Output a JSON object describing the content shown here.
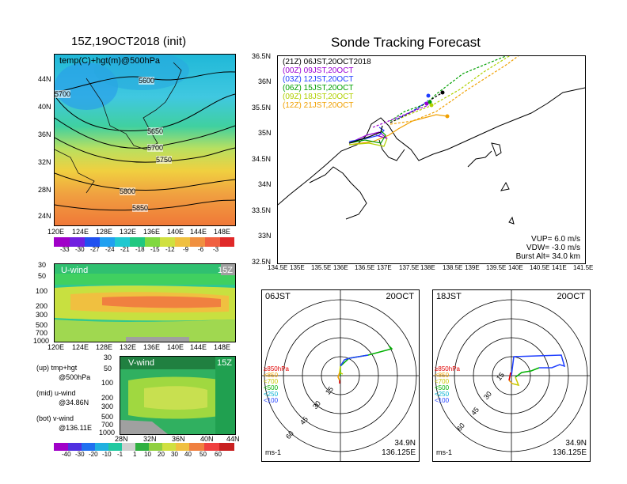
{
  "left_title": "15Z,19OCT2018 (init)",
  "right_title": "Sonde Tracking Forecast",
  "map500": {
    "label": "temp(C)+hgt(m)@500hPa",
    "lat_ticks": [
      "44N",
      "40N",
      "36N",
      "32N",
      "28N",
      "24N"
    ],
    "lon_ticks": [
      "120E",
      "124E",
      "128E",
      "132E",
      "136E",
      "140E",
      "144E",
      "148E"
    ],
    "contours": [
      "5600",
      "5700",
      "5650",
      "5700",
      "5750",
      "5800",
      "5850"
    ],
    "colorbar": [
      "-33",
      "-30",
      "-27",
      "-24",
      "-21",
      "-18",
      "-15",
      "-12",
      "-9",
      "-6",
      "-3"
    ]
  },
  "uwind": {
    "label": "U-wind",
    "time": "15Z",
    "p_ticks": [
      "30",
      "50",
      "100",
      "200",
      "300",
      "500",
      "700",
      "1000"
    ],
    "lon_ticks": [
      "120E",
      "124E",
      "128E",
      "132E",
      "136E",
      "140E",
      "144E",
      "148E"
    ]
  },
  "vwind": {
    "label": "V-wind",
    "time": "15Z",
    "p_ticks": [
      "30",
      "50",
      "100",
      "200",
      "300",
      "500",
      "700",
      "1000"
    ],
    "lat_ticks": [
      "28N",
      "32N",
      "36N",
      "40N",
      "44N"
    ],
    "colorbar": [
      "-40",
      "-30",
      "-20",
      "-10",
      "-1",
      "1",
      "10",
      "20",
      "30",
      "40",
      "50",
      "60"
    ]
  },
  "legend_notes": [
    {
      "a": "(up) tmp+hgt",
      "b": "@500hPa"
    },
    {
      "a": "(mid) u-wind",
      "b": "@34.86N"
    },
    {
      "a": "(bot) v-wind",
      "b": "@136.11E"
    }
  ],
  "track": {
    "launches": [
      {
        "label": "(21Z)  06JST,20OCT2018",
        "color": "#000000"
      },
      {
        "label": "(00Z)  09JST,20OCT",
        "color": "#9b00d4"
      },
      {
        "label": "(03Z)  12JST,20OCT",
        "color": "#1e3cff"
      },
      {
        "label": "(06Z)  15JST,20OCT",
        "color": "#00a000"
      },
      {
        "label": "(09Z)  18JST,20OCT",
        "color": "#b0d000"
      },
      {
        "label": "(12Z)  21JST,20OCT",
        "color": "#f0a000"
      }
    ],
    "lat_ticks": [
      "36.5N",
      "36N",
      "35.5N",
      "35N",
      "34.5N",
      "34N",
      "33.5N",
      "33N",
      "32.5N"
    ],
    "lon_ticks": [
      "134.5E",
      "135E",
      "135.5E",
      "136E",
      "136.5E",
      "137E",
      "137.5E",
      "138E",
      "138.5E",
      "139E",
      "139.5E",
      "140E",
      "140.5E",
      "141E",
      "141.5E"
    ],
    "params": [
      "VUP=  6.0  m/s",
      "VDW=  -3.0  m/s",
      "Burst Alt=  34.0  km"
    ]
  },
  "hodo1": {
    "time": "06JST",
    "date": "20OCT",
    "lat": "34.9N",
    "lon": "136.125E",
    "unit": "ms-1",
    "ring_labels": [
      "15",
      "30",
      "45",
      "60"
    ],
    "levels": [
      {
        "label": "≥850hPa",
        "color": "#e00000"
      },
      {
        "label": "<850",
        "color": "#f0a000"
      },
      {
        "label": "<700",
        "color": "#c8c800"
      },
      {
        "label": "<500",
        "color": "#00b000"
      },
      {
        "label": "<250",
        "color": "#00b0d0"
      },
      {
        "label": "<100",
        "color": "#2040ff"
      }
    ]
  },
  "hodo2": {
    "time": "18JST",
    "date": "20OCT",
    "lat": "34.9N",
    "lon": "136.125E",
    "unit": "ms-1",
    "ring_labels": [
      "15",
      "30",
      "45",
      "60"
    ]
  }
}
